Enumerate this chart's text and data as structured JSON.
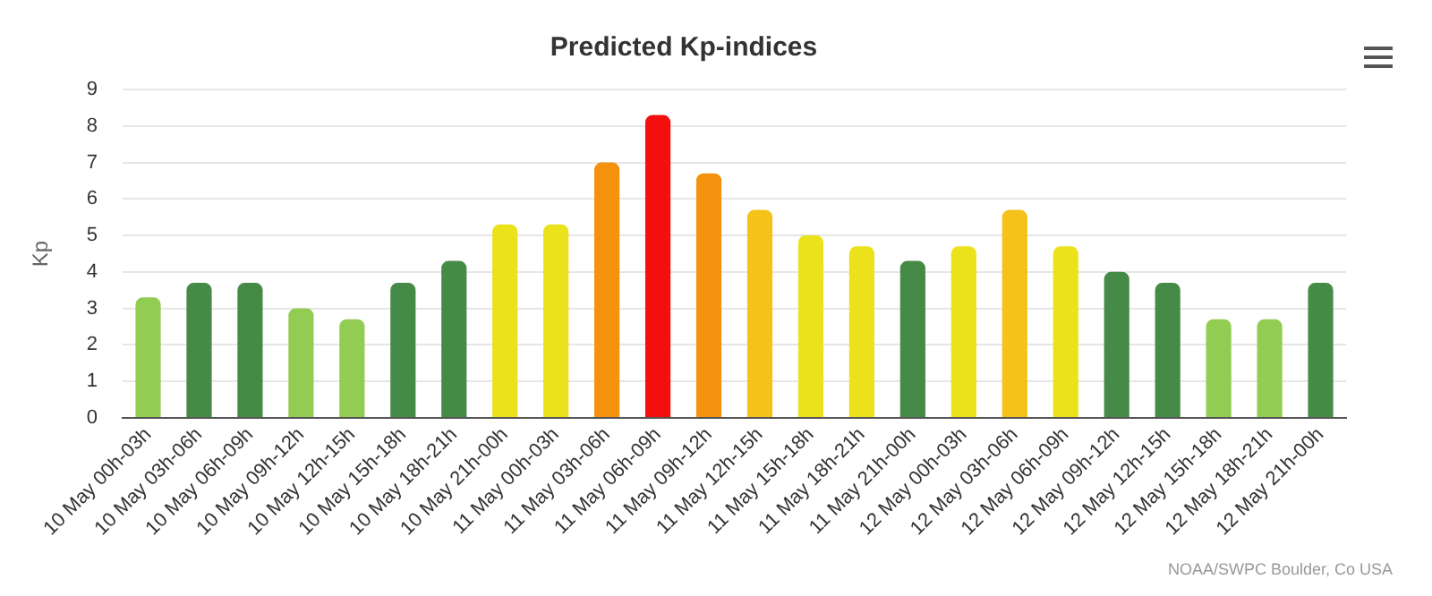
{
  "chart_data": {
    "type": "bar",
    "title": "Predicted Kp-indices",
    "ylabel": "Kp",
    "categories": [
      "10 May 00h-03h",
      "10 May 03h-06h",
      "10 May 06h-09h",
      "10 May 09h-12h",
      "10 May 12h-15h",
      "10 May 15h-18h",
      "10 May 18h-21h",
      "10 May 21h-00h",
      "11 May 00h-03h",
      "11 May 03h-06h",
      "11 May 06h-09h",
      "11 May 09h-12h",
      "11 May 12h-15h",
      "11 May 15h-18h",
      "11 May 18h-21h",
      "11 May 21h-00h",
      "12 May 00h-03h",
      "12 May 03h-06h",
      "12 May 06h-09h",
      "12 May 09h-12h",
      "12 May 12h-15h",
      "12 May 15h-18h",
      "12 May 18h-21h",
      "12 May 21h-00h"
    ],
    "values": [
      3.3,
      3.7,
      3.7,
      3.0,
      2.7,
      3.7,
      4.3,
      5.3,
      5.3,
      7.0,
      8.3,
      6.7,
      5.7,
      5.0,
      4.7,
      4.3,
      4.7,
      5.7,
      4.7,
      4.0,
      3.7,
      2.7,
      2.7,
      3.7
    ],
    "colors": [
      "#92cc52",
      "#468a48",
      "#468a48",
      "#92cc52",
      "#92cc52",
      "#468a48",
      "#468a48",
      "#ebe21c",
      "#ebe21c",
      "#f4920e",
      "#f40f0f",
      "#f4920e",
      "#f5c21a",
      "#ebe21c",
      "#ebe21c",
      "#468a48",
      "#ebe21c",
      "#f5c21a",
      "#ebe21c",
      "#468a48",
      "#468a48",
      "#92cc52",
      "#92cc52",
      "#468a48"
    ],
    "ylim": [
      0,
      9
    ],
    "yticks": [
      0,
      1,
      2,
      3,
      4,
      5,
      6,
      7,
      8,
      9
    ],
    "grid": "y",
    "legend": false,
    "annotations": [
      "NOAA/SWPC Boulder, Co USA"
    ]
  }
}
